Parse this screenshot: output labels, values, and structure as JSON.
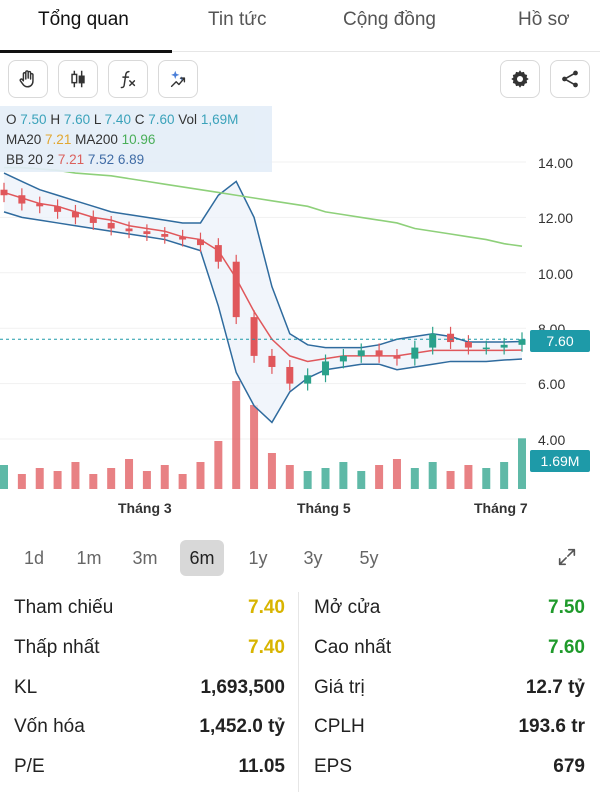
{
  "tabs": [
    {
      "label": "Tổng quan",
      "active": true
    },
    {
      "label": "Tin tức",
      "active": false
    },
    {
      "label": "Cộng đồng",
      "active": false
    },
    {
      "label": "Hồ sơ",
      "active": false
    }
  ],
  "toolbar": {
    "icons": [
      "hand-icon",
      "candlestick-icon",
      "function-icon",
      "ai-sparkle-icon",
      "gear-icon",
      "share-icon"
    ]
  },
  "ohlc": {
    "o_label": "O",
    "o_value": "7.50",
    "h_label": "H",
    "h_value": "7.60",
    "l_label": "L",
    "l_value": "7.40",
    "c_label": "C",
    "c_value": "7.60",
    "vol_label": "Vol",
    "vol_value": "1,69M",
    "ma20_label": "MA20",
    "ma20_value": "7.21",
    "ma200_label": "MA200",
    "ma200_value": "10.96",
    "bb_label": "BB 20 2",
    "bb_mid": "7.21",
    "bb_upper": "7.52",
    "bb_lower": "6.89"
  },
  "chart_data": {
    "type": "candlestick",
    "y_axis_ticks": [
      "14.00",
      "12.00",
      "10.00",
      "8.00",
      "6.00",
      "4.00"
    ],
    "x_axis_ticks": [
      "Tháng 3",
      "Tháng 5",
      "Tháng 7"
    ],
    "last_price": "7.60",
    "last_volume": "1.69M",
    "ylim": [
      4,
      14
    ],
    "close_series": [
      12.8,
      12.5,
      12.4,
      12.2,
      12.0,
      11.8,
      11.6,
      11.5,
      11.4,
      11.3,
      11.2,
      11.0,
      10.4,
      8.4,
      7.0,
      6.6,
      6.0,
      6.3,
      6.8,
      7.0,
      7.2,
      7.0,
      6.9,
      7.3,
      7.8,
      7.5,
      7.3,
      7.3,
      7.4,
      7.6
    ],
    "ma20_series": [
      12.9,
      12.7,
      12.5,
      12.4,
      12.2,
      12.0,
      11.9,
      11.7,
      11.6,
      11.5,
      11.3,
      11.2,
      10.8,
      9.8,
      8.6,
      7.6,
      7.0,
      6.8,
      6.9,
      7.0,
      7.0,
      7.0,
      7.0,
      7.1,
      7.2,
      7.2,
      7.2,
      7.2,
      7.2,
      7.21
    ],
    "bb_upper_series": [
      13.6,
      13.3,
      13.0,
      12.8,
      12.6,
      12.4,
      12.2,
      12.1,
      12.0,
      11.9,
      11.8,
      11.8,
      12.8,
      13.3,
      12.0,
      9.5,
      7.8,
      7.4,
      7.3,
      7.3,
      7.3,
      7.4,
      7.6,
      7.7,
      7.8,
      7.7,
      7.5,
      7.5,
      7.5,
      7.52
    ],
    "bb_lower_series": [
      12.2,
      12.0,
      11.9,
      11.8,
      11.7,
      11.6,
      11.5,
      11.4,
      11.3,
      11.2,
      11.0,
      10.8,
      8.8,
      6.4,
      5.2,
      4.6,
      5.7,
      6.2,
      6.5,
      6.6,
      6.7,
      6.7,
      6.5,
      6.6,
      6.7,
      6.8,
      6.8,
      6.8,
      6.85,
      6.89
    ],
    "ma200_series": [
      13.8,
      13.8,
      13.75,
      13.7,
      13.6,
      13.55,
      13.5,
      13.4,
      13.3,
      13.2,
      13.1,
      13.0,
      12.9,
      12.8,
      12.7,
      12.6,
      12.5,
      12.4,
      12.2,
      12.1,
      12.0,
      11.9,
      11.8,
      11.6,
      11.5,
      11.4,
      11.3,
      11.2,
      11.05,
      10.96
    ],
    "volume_series": [
      0.8,
      0.5,
      0.7,
      0.6,
      0.9,
      0.5,
      0.7,
      1.0,
      0.6,
      0.8,
      0.5,
      0.9,
      1.6,
      3.6,
      2.8,
      1.2,
      0.8,
      0.6,
      0.7,
      0.9,
      0.6,
      0.8,
      1.0,
      0.7,
      0.9,
      0.6,
      0.8,
      0.7,
      0.9,
      1.69
    ]
  },
  "periods": [
    {
      "label": "1d",
      "active": false
    },
    {
      "label": "1m",
      "active": false
    },
    {
      "label": "3m",
      "active": false
    },
    {
      "label": "6m",
      "active": true
    },
    {
      "label": "1y",
      "active": false
    },
    {
      "label": "3y",
      "active": false
    },
    {
      "label": "5y",
      "active": false
    }
  ],
  "stats": {
    "left": [
      {
        "label": "Tham chiếu",
        "value": "7.40",
        "color": "yellow"
      },
      {
        "label": "Thấp nhất",
        "value": "7.40",
        "color": "yellow"
      },
      {
        "label": "KL",
        "value": "1,693,500",
        "color": "default"
      },
      {
        "label": "Vốn hóa",
        "value": "1,452.0 tỷ",
        "color": "default"
      },
      {
        "label": "P/E",
        "value": "11.05",
        "color": "default"
      }
    ],
    "right": [
      {
        "label": "Mở cửa",
        "value": "7.50",
        "color": "green"
      },
      {
        "label": "Cao nhất",
        "value": "7.60",
        "color": "green"
      },
      {
        "label": "Giá trị",
        "value": "12.7 tỷ",
        "color": "default"
      },
      {
        "label": "CPLH",
        "value": "193.6 tr",
        "color": "default"
      },
      {
        "label": "EPS",
        "value": "679",
        "color": "default"
      }
    ]
  },
  "colors": {
    "accent": "#1e9aa8",
    "up": "#2aa18a",
    "down": "#e0575b",
    "ma20": "#e0575b",
    "ma200": "#8ed07a",
    "bb": "#2f6b9e",
    "yellow": "#d8b400",
    "green": "#1f9a2b"
  }
}
